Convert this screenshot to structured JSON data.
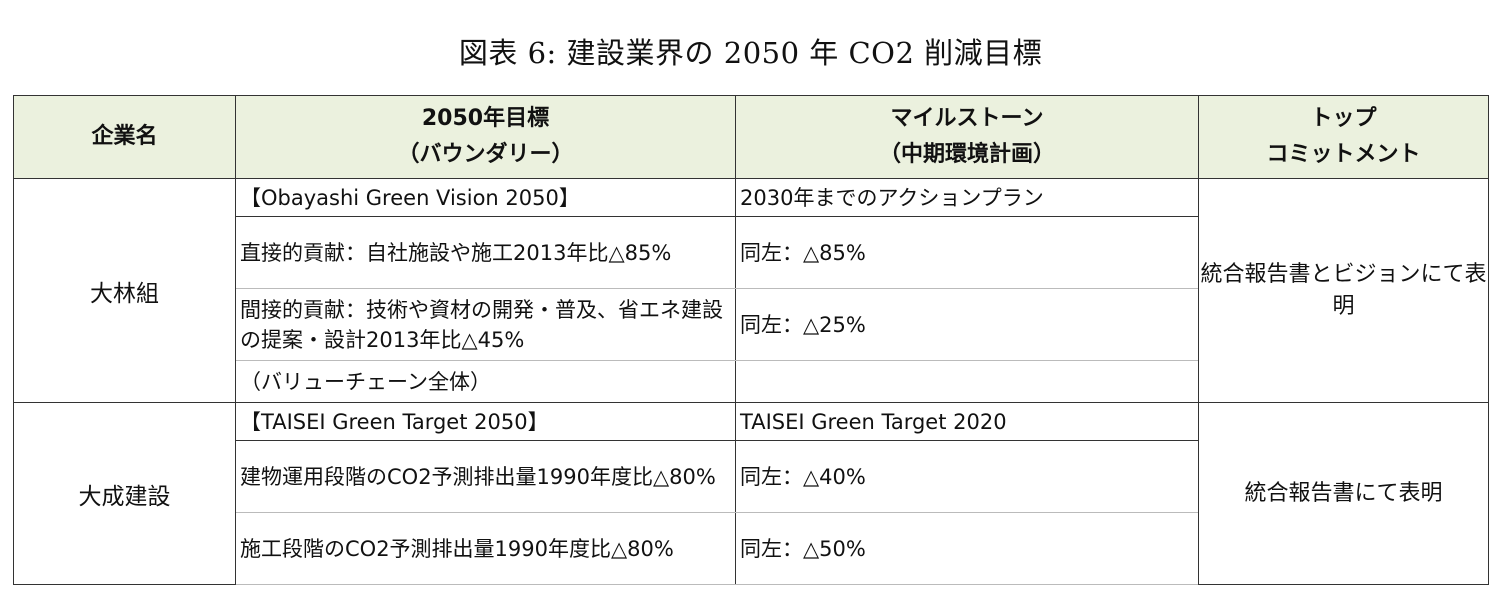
{
  "title": "図表 6:  建設業界の 2050 年 CO2 削減目標",
  "headers": {
    "company": "企業名",
    "target_line1": "2050年目標",
    "target_line2": "（バウンダリー）",
    "milestone_line1": "マイルストーン",
    "milestone_line2": "（中期環境計画）",
    "top_line1": "トップ",
    "top_line2": "コミットメント"
  },
  "rows": [
    {
      "company": "大林組",
      "top": "統合報告書とビジョンにて表明",
      "lines": [
        {
          "target": "【Obayashi Green Vision 2050】",
          "milestone": "2030年までのアクションプラン"
        },
        {
          "target": "直接的貢献：自社施設や施工2013年比△85%",
          "milestone": "同左：△85%"
        },
        {
          "target": "間接的貢献：技術や資材の開発・普及、省エネ建設の提案・設計2013年比△45%",
          "milestone": "同左：△25%"
        },
        {
          "target": "（バリューチェーン全体）",
          "milestone": ""
        }
      ]
    },
    {
      "company": "大成建設",
      "top": "統合報告書にて表明",
      "lines": [
        {
          "target": "【TAISEI Green Target 2050】",
          "milestone": "TAISEI Green Target 2020"
        },
        {
          "target": "建物運用段階のCO2予測排出量1990年度比△80%",
          "milestone": "同左：△40%"
        },
        {
          "target": "施工段階のCO2予測排出量1990年度比△80%",
          "milestone": "同左：△50%"
        }
      ]
    }
  ]
}
